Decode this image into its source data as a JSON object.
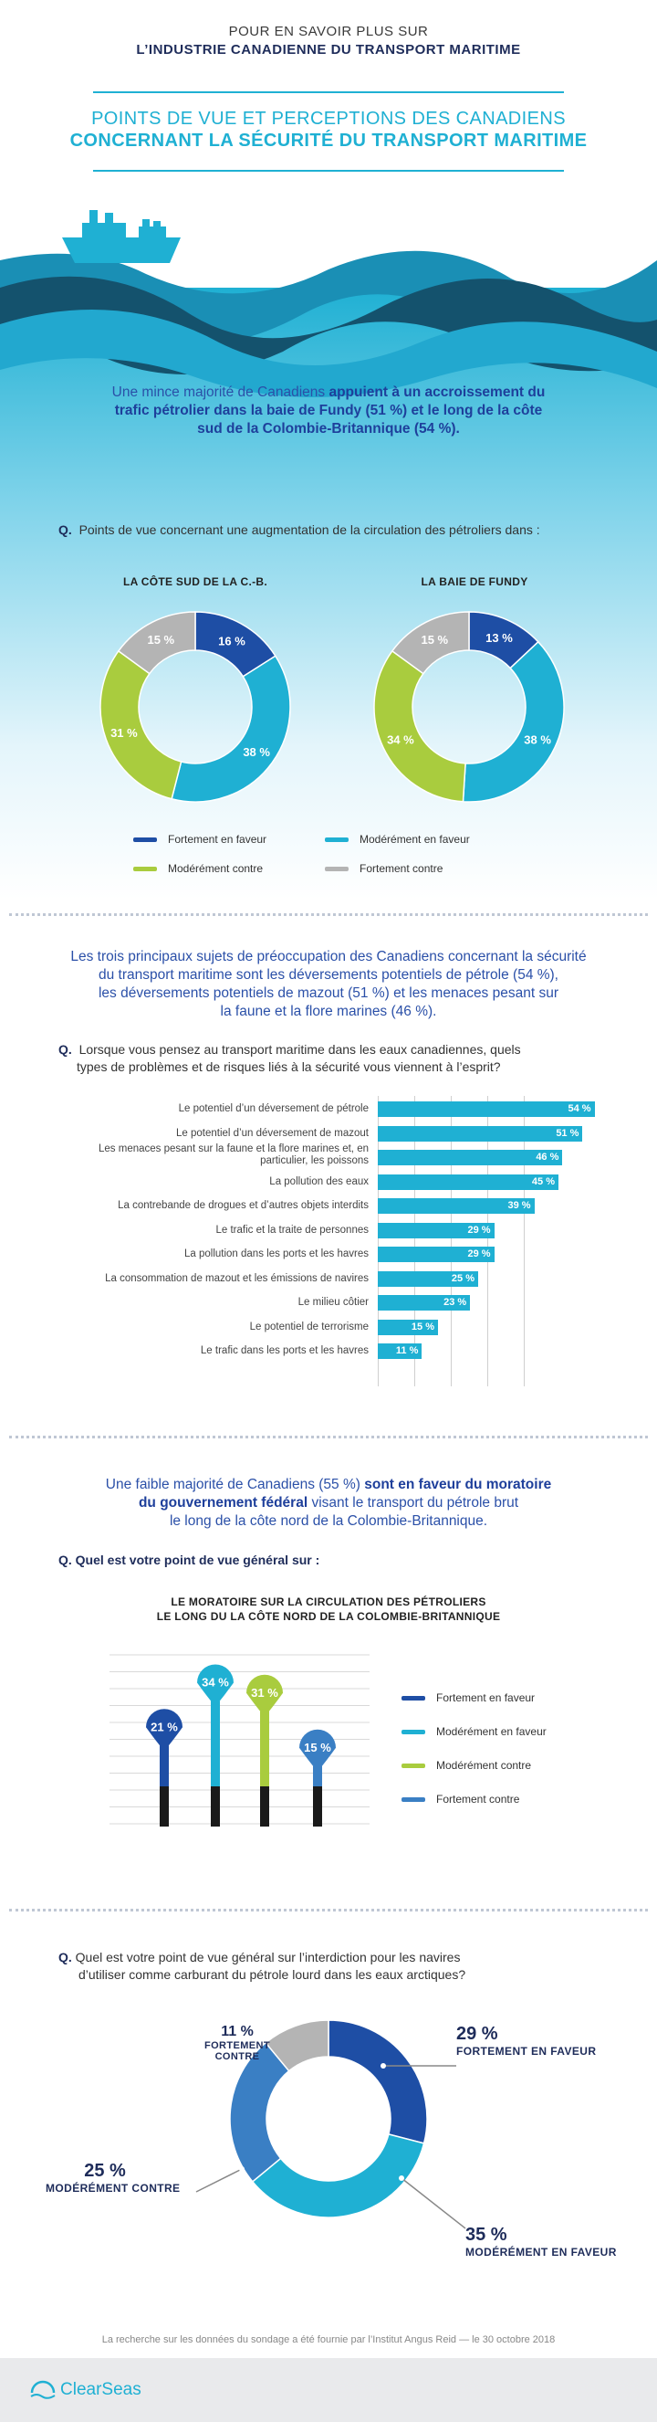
{
  "header": {
    "line1": "POUR EN SAVOIR PLUS SUR",
    "line2": "L’INDUSTRIE CANADIENNE DU TRANSPORT MARITIME"
  },
  "title": {
    "line1": "POINTS DE VUE ET PERCEPTIONS DES CANADIENS",
    "line2": "CONCERNANT LA SÉCURITÉ DU TRANSPORT MARITIME"
  },
  "section1": {
    "intro_plain1": "Une mince majorité de Canadiens ",
    "intro_bold1": "appuient à un accroissement du",
    "intro_bold2": "trafic pétrolier dans la baie de Fundy (51 %) et le long de la côte",
    "intro_bold3": "sud de la Colombie-Britannique (54 %).",
    "question_q": "Q.",
    "question": "Points de vue concernant une augmentation de la circulation des pétroliers dans :",
    "charts": [
      {
        "title": "LA CÔTE SUD DE LA C.-B.",
        "slices": [
          {
            "label": "16 %",
            "value": 16,
            "color": "#1e4ea5"
          },
          {
            "label": "38 %",
            "value": 38,
            "color": "#1fb0d3"
          },
          {
            "label": "31 %",
            "value": 31,
            "color": "#a9cc3e"
          },
          {
            "label": "15 %",
            "value": 15,
            "color": "#b4b4b4"
          }
        ]
      },
      {
        "title": "LA BAIE DE FUNDY",
        "slices": [
          {
            "label": "13 %",
            "value": 13,
            "color": "#1e4ea5"
          },
          {
            "label": "38 %",
            "value": 38,
            "color": "#1fb0d3"
          },
          {
            "label": "34 %",
            "value": 34,
            "color": "#a9cc3e"
          },
          {
            "label": "15 %",
            "value": 15,
            "color": "#b4b4b4"
          }
        ]
      }
    ],
    "legend": [
      {
        "label": "Fortement en faveur",
        "color": "#1e4ea5"
      },
      {
        "label": "Modérément en faveur",
        "color": "#1fb0d3"
      },
      {
        "label": "Modérément contre",
        "color": "#a9cc3e"
      },
      {
        "label": "Fortement contre",
        "color": "#b4b4b4"
      }
    ]
  },
  "section2": {
    "intro1": "Les trois principaux sujets de préoccupation des Canadiens concernant la sécurité",
    "intro2": "du transport maritime sont les déversements potentiels de pétrole (54 %),",
    "intro3": "les déversements potentiels de mazout (51 %) et les menaces pesant sur",
    "intro4": "la faune et la flore marines (46 %).",
    "question_q": "Q.",
    "question1": "Lorsque vous pensez au transport maritime dans les eaux canadiennes, quels",
    "question2": "types de problèmes et de risques liés à la sécurité vous viennent à l’esprit?",
    "bars": [
      {
        "label": "Le potentiel d’un déversement de pétrole",
        "value": 54,
        "text": "54 %"
      },
      {
        "label": "Le potentiel d’un déversement de mazout",
        "value": 51,
        "text": "51 %"
      },
      {
        "label": "Les menaces pesant sur la faune et la flore marines et, en particulier, les poissons",
        "value": 46,
        "text": "46 %"
      },
      {
        "label": "La pollution des eaux",
        "value": 45,
        "text": "45 %"
      },
      {
        "label": "La contrebande de drogues et d’autres objets interdits",
        "value": 39,
        "text": "39 %"
      },
      {
        "label": "Le trafic et la traite de personnes",
        "value": 29,
        "text": "29 %"
      },
      {
        "label": "La pollution dans les ports et les havres",
        "value": 29,
        "text": "29 %"
      },
      {
        "label": "La consommation de mazout et les émissions de navires",
        "value": 25,
        "text": "25 %"
      },
      {
        "label": "Le milieu côtier",
        "value": 23,
        "text": "23 %"
      },
      {
        "label": "Le potentiel de terrorisme",
        "value": 15,
        "text": "15 %"
      },
      {
        "label": "Le trafic dans les ports et les havres",
        "value": 11,
        "text": "11 %"
      }
    ]
  },
  "section3": {
    "intro_plain1": "Une faible majorité de Canadiens (55 %) ",
    "intro_bold1": "sont en faveur du moratoire",
    "intro_bold2": "du gouvernement fédéral",
    "intro_plain2": " visant le transport du pétrole brut",
    "intro_plain3": "le long de la côte nord de la Colombie-Britannique.",
    "question_q": "Q.",
    "question": "Quel est votre point de vue général sur :",
    "chart_title1": "LE MORATOIRE SUR LA CIRCULATION DES PÉTROLIERS",
    "chart_title2": "LE LONG DU LA CÔTE NORD DE LA COLOMBIE-BRITANNIQUE",
    "pins": [
      {
        "label": "21 %",
        "value": 21,
        "color": "#1e4ea5"
      },
      {
        "label": "34 %",
        "value": 34,
        "color": "#1fb0d3"
      },
      {
        "label": "31 %",
        "value": 31,
        "color": "#a9cc3e"
      },
      {
        "label": "15 %",
        "value": 15,
        "color": "#3a7fc4"
      }
    ],
    "legend": [
      {
        "label": "Fortement en faveur",
        "color": "#1e4ea5"
      },
      {
        "label": "Modérément en faveur",
        "color": "#1fb0d3"
      },
      {
        "label": "Modérément contre",
        "color": "#a9cc3e"
      },
      {
        "label": "Fortement contre",
        "color": "#3a7fc4"
      }
    ]
  },
  "section4": {
    "question_q": "Q.",
    "question1": "Quel est votre point de vue général sur l’interdiction pour les navires",
    "question2": "d’utiliser comme carburant du pétrole lourd dans les eaux arctiques?",
    "slices": [
      {
        "pct": "29 %",
        "label": "FORTEMENT EN FAVEUR",
        "value": 29,
        "color": "#1e4ea5"
      },
      {
        "pct": "35 %",
        "label": "MODÉRÉMENT EN FAVEUR",
        "value": 35,
        "color": "#1fb0d3"
      },
      {
        "pct": "25 %",
        "label": "MODÉRÉMENT CONTRE",
        "value": 25,
        "color": "#3a7fc4"
      },
      {
        "pct": "11 %",
        "label": "FORTEMENT CONTRE",
        "value": 11,
        "color": "#b4b4b4"
      }
    ]
  },
  "footer": {
    "source": "La recherche sur les données du sondage a été fournie par l’Institut Angus Reid — le 30 octobre 2018",
    "logo": "ClearSeas"
  },
  "chart_data": [
    {
      "type": "pie",
      "title": "LA CÔTE SUD DE LA C.-B.",
      "categories": [
        "Fortement en faveur",
        "Modérément en faveur",
        "Modérément contre",
        "Fortement contre"
      ],
      "values": [
        16,
        38,
        31,
        15
      ]
    },
    {
      "type": "pie",
      "title": "LA BAIE DE FUNDY",
      "categories": [
        "Fortement en faveur",
        "Modérément en faveur",
        "Modérément contre",
        "Fortement contre"
      ],
      "values": [
        13,
        38,
        34,
        15
      ]
    },
    {
      "type": "bar",
      "categories": [
        "Le potentiel d’un déversement de pétrole",
        "Le potentiel d’un déversement de mazout",
        "Les menaces pesant sur la faune et la flore marines et, en particulier, les poissons",
        "La pollution des eaux",
        "La contrebande de drogues et d’autres objets interdits",
        "Le trafic et la traite de personnes",
        "La pollution dans les ports et les havres",
        "La consommation de mazout et les émissions de navires",
        "Le milieu côtier",
        "Le potentiel de terrorisme",
        "Le trafic dans les ports et les havres"
      ],
      "values": [
        54,
        51,
        46,
        45,
        39,
        29,
        29,
        25,
        23,
        15,
        11
      ]
    },
    {
      "type": "bar",
      "title": "LE MORATOIRE SUR LA CIRCULATION DES PÉTROLIERS LE LONG DU LA CÔTE NORD DE LA COLOMBIE-BRITANNIQUE",
      "categories": [
        "Fortement en faveur",
        "Modérément en faveur",
        "Modérément contre",
        "Fortement contre"
      ],
      "values": [
        21,
        34,
        31,
        15
      ]
    },
    {
      "type": "pie",
      "categories": [
        "FORTEMENT EN FAVEUR",
        "MODÉRÉMENT EN FAVEUR",
        "MODÉRÉMENT CONTRE",
        "FORTEMENT CONTRE"
      ],
      "values": [
        29,
        35,
        25,
        11
      ]
    }
  ]
}
